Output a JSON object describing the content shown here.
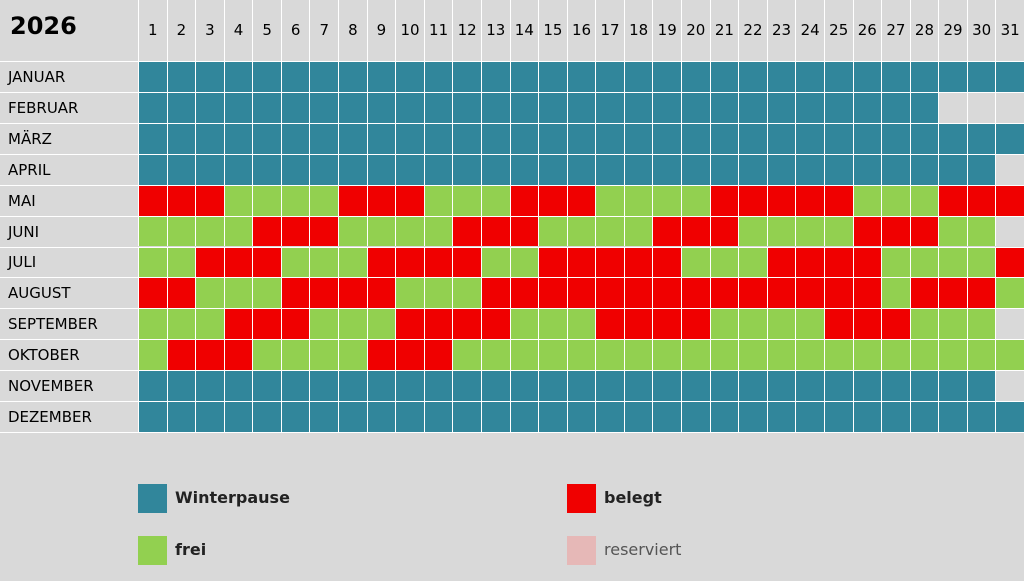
{
  "header": {
    "year": "2026",
    "days": [
      1,
      2,
      3,
      4,
      5,
      6,
      7,
      8,
      9,
      10,
      11,
      12,
      13,
      14,
      15,
      16,
      17,
      18,
      19,
      20,
      21,
      22,
      23,
      24,
      25,
      26,
      27,
      28,
      29,
      30,
      31
    ]
  },
  "legend": [
    {
      "label": "Winterpause",
      "color": "#31869b"
    },
    {
      "label": "belegt",
      "color": "#f00000"
    },
    {
      "label": "frei",
      "color": "#92d050"
    },
    {
      "label": "reserviert",
      "color": "#e6b8b7"
    }
  ],
  "months": [
    {
      "name": "JANUAR",
      "days": [
        "Winterpause",
        "Winterpause",
        "Winterpause",
        "Winterpause",
        "Winterpause",
        "Winterpause",
        "Winterpause",
        "Winterpause",
        "Winterpause",
        "Winterpause",
        "Winterpause",
        "Winterpause",
        "Winterpause",
        "Winterpause",
        "Winterpause",
        "Winterpause",
        "Winterpause",
        "Winterpause",
        "Winterpause",
        "Winterpause",
        "Winterpause",
        "Winterpause",
        "Winterpause",
        "Winterpause",
        "Winterpause",
        "Winterpause",
        "Winterpause",
        "Winterpause",
        "Winterpause",
        "Winterpause",
        "Winterpause"
      ]
    },
    {
      "name": "FEBRUAR",
      "days": [
        "Winterpause",
        "Winterpause",
        "Winterpause",
        "Winterpause",
        "Winterpause",
        "Winterpause",
        "Winterpause",
        "Winterpause",
        "Winterpause",
        "Winterpause",
        "Winterpause",
        "Winterpause",
        "Winterpause",
        "Winterpause",
        "Winterpause",
        "Winterpause",
        "Winterpause",
        "Winterpause",
        "Winterpause",
        "Winterpause",
        "Winterpause",
        "Winterpause",
        "Winterpause",
        "Winterpause",
        "Winterpause",
        "Winterpause",
        "Winterpause",
        "Winterpause",
        null,
        null,
        null
      ]
    },
    {
      "name": "MÄRZ",
      "days": [
        "Winterpause",
        "Winterpause",
        "Winterpause",
        "Winterpause",
        "Winterpause",
        "Winterpause",
        "Winterpause",
        "Winterpause",
        "Winterpause",
        "Winterpause",
        "Winterpause",
        "Winterpause",
        "Winterpause",
        "Winterpause",
        "Winterpause",
        "Winterpause",
        "Winterpause",
        "Winterpause",
        "Winterpause",
        "Winterpause",
        "Winterpause",
        "Winterpause",
        "Winterpause",
        "Winterpause",
        "Winterpause",
        "Winterpause",
        "Winterpause",
        "Winterpause",
        "Winterpause",
        "Winterpause",
        "Winterpause"
      ]
    },
    {
      "name": "APRIL",
      "days": [
        "Winterpause",
        "Winterpause",
        "Winterpause",
        "Winterpause",
        "Winterpause",
        "Winterpause",
        "Winterpause",
        "Winterpause",
        "Winterpause",
        "Winterpause",
        "Winterpause",
        "Winterpause",
        "Winterpause",
        "Winterpause",
        "Winterpause",
        "Winterpause",
        "Winterpause",
        "Winterpause",
        "Winterpause",
        "Winterpause",
        "Winterpause",
        "Winterpause",
        "Winterpause",
        "Winterpause",
        "Winterpause",
        "Winterpause",
        "Winterpause",
        "Winterpause",
        "Winterpause",
        "Winterpause",
        null
      ]
    },
    {
      "name": "MAI",
      "days": [
        "belegt",
        "belegt",
        "belegt",
        "frei",
        "frei",
        "frei",
        "frei",
        "belegt",
        "belegt",
        "belegt",
        "frei",
        "frei",
        "frei",
        "belegt",
        "belegt",
        "belegt",
        "frei",
        "frei",
        "frei",
        "frei",
        "belegt",
        "belegt",
        "belegt",
        "belegt",
        "belegt",
        "frei",
        "frei",
        "frei",
        "belegt",
        "belegt",
        "belegt"
      ]
    },
    {
      "name": "JUNI",
      "days": [
        "frei",
        "frei",
        "frei",
        "frei",
        "belegt",
        "belegt",
        "belegt",
        "frei",
        "frei",
        "frei",
        "frei",
        "belegt",
        "belegt",
        "belegt",
        "frei",
        "frei",
        "frei",
        "frei",
        "belegt",
        "belegt",
        "belegt",
        "frei",
        "frei",
        "frei",
        "frei",
        "belegt",
        "belegt",
        "belegt",
        "frei",
        "frei",
        null
      ]
    },
    {
      "name": "JULI",
      "days": [
        "frei",
        "frei",
        "belegt",
        "belegt",
        "belegt",
        "frei",
        "frei",
        "frei",
        "belegt",
        "belegt",
        "belegt",
        "belegt",
        "frei",
        "frei",
        "belegt",
        "belegt",
        "belegt",
        "belegt",
        "belegt",
        "frei",
        "frei",
        "frei",
        "belegt",
        "belegt",
        "belegt",
        "belegt",
        "frei",
        "frei",
        "frei",
        "frei",
        "belegt"
      ]
    },
    {
      "name": "AUGUST",
      "days": [
        "belegt",
        "belegt",
        "frei",
        "frei",
        "frei",
        "belegt",
        "belegt",
        "belegt",
        "belegt",
        "frei",
        "frei",
        "frei",
        "belegt",
        "belegt",
        "belegt",
        "belegt",
        "belegt",
        "belegt",
        "belegt",
        "belegt",
        "belegt",
        "belegt",
        "belegt",
        "belegt",
        "belegt",
        "belegt",
        "frei",
        "belegt",
        "belegt",
        "belegt",
        "frei"
      ]
    },
    {
      "name": "SEPTEMBER",
      "days": [
        "frei",
        "frei",
        "frei",
        "belegt",
        "belegt",
        "belegt",
        "frei",
        "frei",
        "frei",
        "belegt",
        "belegt",
        "belegt",
        "belegt",
        "frei",
        "frei",
        "frei",
        "belegt",
        "belegt",
        "belegt",
        "belegt",
        "frei",
        "frei",
        "frei",
        "frei",
        "belegt",
        "belegt",
        "belegt",
        "frei",
        "frei",
        "frei",
        null
      ]
    },
    {
      "name": "OKTOBER",
      "days": [
        "frei",
        "belegt",
        "belegt",
        "belegt",
        "frei",
        "frei",
        "frei",
        "frei",
        "belegt",
        "belegt",
        "belegt",
        "frei",
        "frei",
        "frei",
        "frei",
        "frei",
        "frei",
        "frei",
        "frei",
        "frei",
        "frei",
        "frei",
        "frei",
        "frei",
        "frei",
        "frei",
        "frei",
        "frei",
        "frei",
        "frei",
        "frei"
      ]
    },
    {
      "name": "NOVEMBER",
      "days": [
        "Winterpause",
        "Winterpause",
        "Winterpause",
        "Winterpause",
        "Winterpause",
        "Winterpause",
        "Winterpause",
        "Winterpause",
        "Winterpause",
        "Winterpause",
        "Winterpause",
        "Winterpause",
        "Winterpause",
        "Winterpause",
        "Winterpause",
        "Winterpause",
        "Winterpause",
        "Winterpause",
        "Winterpause",
        "Winterpause",
        "Winterpause",
        "Winterpause",
        "Winterpause",
        "Winterpause",
        "Winterpause",
        "Winterpause",
        "Winterpause",
        "Winterpause",
        "Winterpause",
        "Winterpause",
        null
      ]
    },
    {
      "name": "DEZEMBER",
      "days": [
        "Winterpause",
        "Winterpause",
        "Winterpause",
        "Winterpause",
        "Winterpause",
        "Winterpause",
        "Winterpause",
        "Winterpause",
        "Winterpause",
        "Winterpause",
        "Winterpause",
        "Winterpause",
        "Winterpause",
        "Winterpause",
        "Winterpause",
        "Winterpause",
        "Winterpause",
        "Winterpause",
        "Winterpause",
        "Winterpause",
        "Winterpause",
        "Winterpause",
        "Winterpause",
        "Winterpause",
        "Winterpause",
        "Winterpause",
        "Winterpause",
        "Winterpause",
        "Winterpause",
        "Winterpause",
        "Winterpause"
      ]
    }
  ]
}
